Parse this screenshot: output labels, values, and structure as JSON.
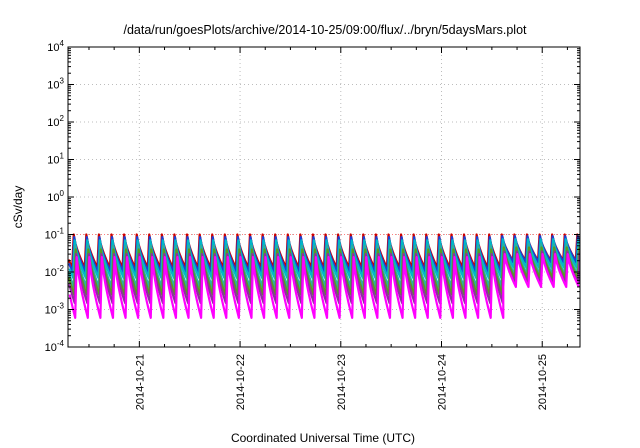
{
  "chart_data": {
    "type": "line",
    "title": "/data/run/goesPlots/archive/2014-10-25/09:00/flux/../bryn/5daysMars.plot",
    "xlabel": "Coordinated Universal Time (UTC)",
    "ylabel": "cSv/day",
    "y_scale": "log",
    "ylim": [
      0.0001,
      10000
    ],
    "y_ticks": [
      {
        "base": "10",
        "exp": "-4"
      },
      {
        "base": "10",
        "exp": "-3"
      },
      {
        "base": "10",
        "exp": "-2"
      },
      {
        "base": "10",
        "exp": "-1"
      },
      {
        "base": "10",
        "exp": "0"
      },
      {
        "base": "10",
        "exp": "1"
      },
      {
        "base": "10",
        "exp": "2"
      },
      {
        "base": "10",
        "exp": "3"
      },
      {
        "base": "10",
        "exp": "4"
      }
    ],
    "xlim": [
      "2014-10-20T07:00",
      "2014-10-25T09:00"
    ],
    "x_ticks": [
      "2014-10-21",
      "2014-10-22",
      "2014-10-23",
      "2014-10-24",
      "2014-10-25"
    ],
    "grid": true,
    "pattern": {
      "period_hours": 3,
      "phase_offset_hours": 1,
      "rise_fraction": 0.12,
      "peak_shift_hours": 0.12
    },
    "series": [
      {
        "color": "#cc0000",
        "peak": 0.1,
        "trough": 0.013,
        "peak_late": 0.1,
        "trough_late": 0.02
      },
      {
        "color": "#1a3fd6",
        "peak": 0.085,
        "trough": 0.01,
        "peak_late": 0.09,
        "trough_late": 0.018
      },
      {
        "color": "#00b8c8",
        "peak": 0.07,
        "trough": 0.007,
        "peak_late": 0.075,
        "trough_late": 0.013
      },
      {
        "color": "#2ab0a0",
        "peak": 0.05,
        "trough": 0.004,
        "peak_late": 0.055,
        "trough_late": 0.009
      },
      {
        "color": "#5a9a20",
        "peak": 0.04,
        "trough": 0.0025,
        "peak_late": 0.045,
        "trough_late": 0.007
      },
      {
        "color": "#8f2fa0",
        "peak": 0.03,
        "trough": 0.0015,
        "peak_late": 0.035,
        "trough_late": 0.005
      },
      {
        "color": "#ff00ff",
        "peak": 0.025,
        "trough": 0.0006,
        "peak_late": 0.03,
        "trough_late": 0.004
      }
    ],
    "late_change_from": "2014-10-24T13:00",
    "reference_line": {
      "value": 0.1,
      "color": "#ff8080"
    }
  }
}
